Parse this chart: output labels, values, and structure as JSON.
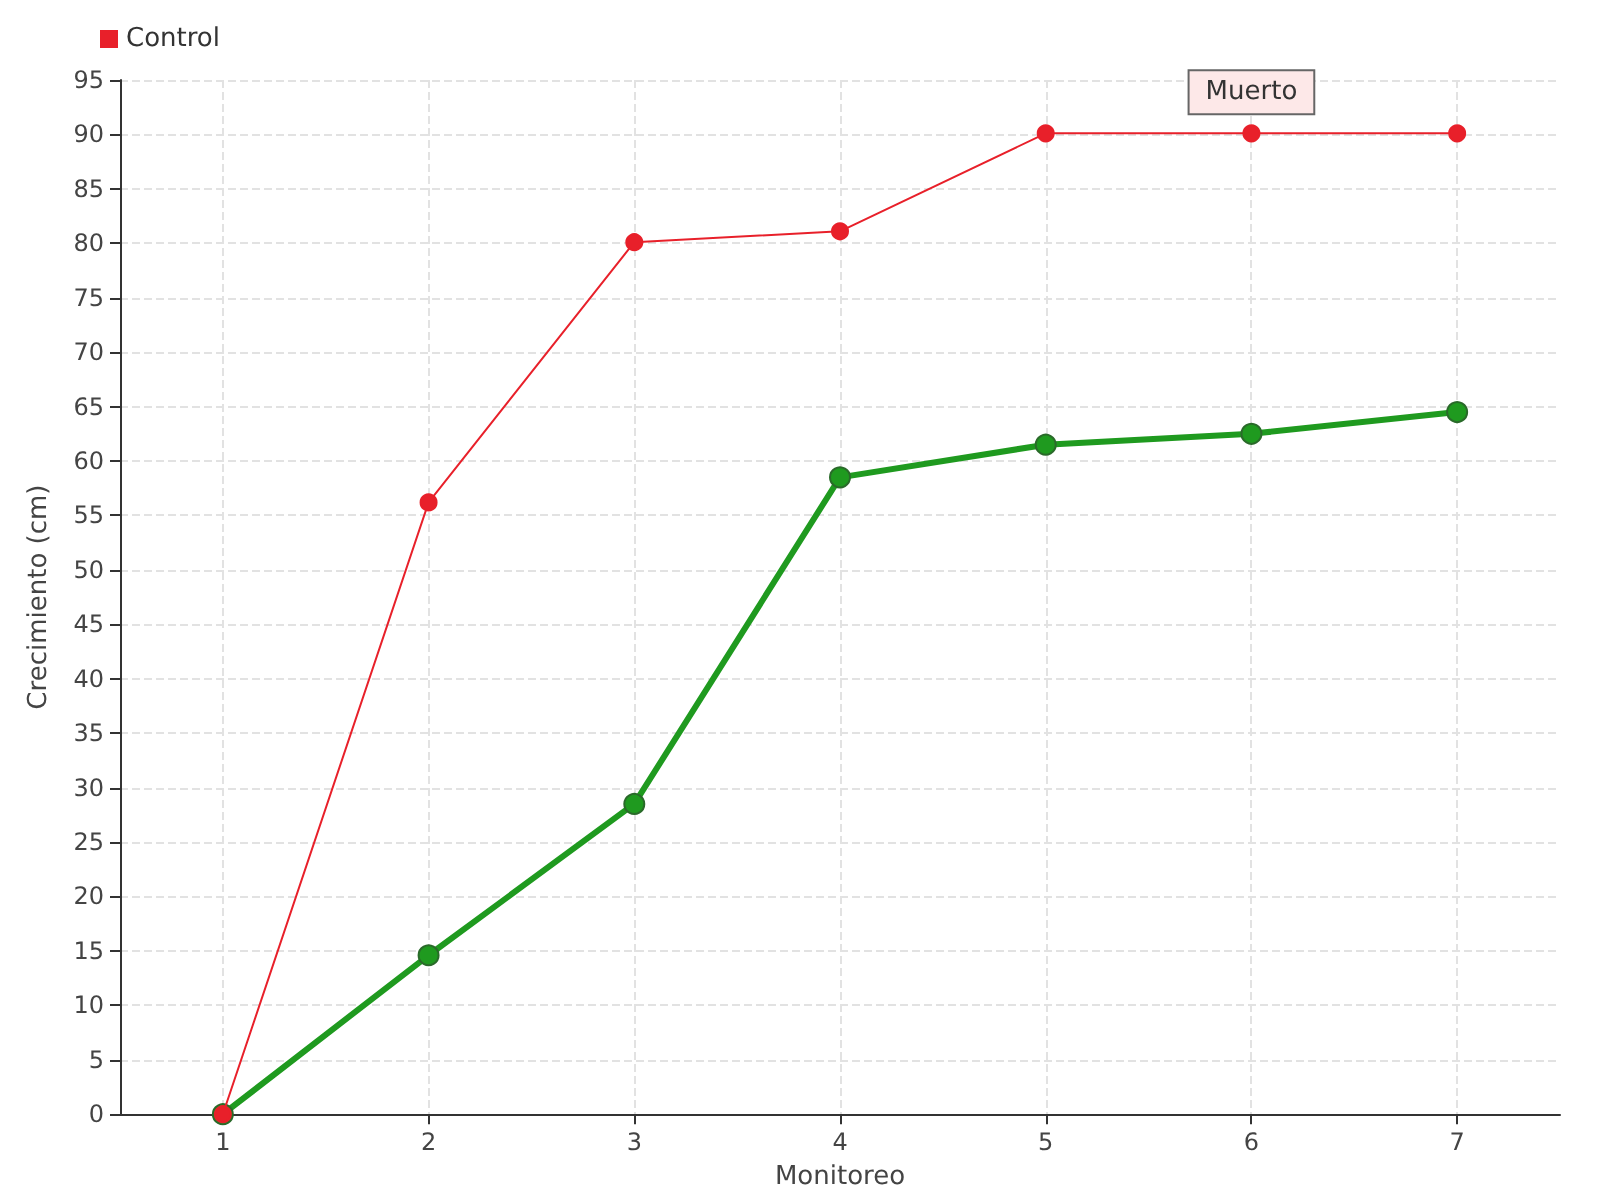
{
  "chart_data": {
    "type": "line",
    "xlabel": "Monitoreo",
    "ylabel": "Crecimiento (cm)",
    "x": [
      1,
      2,
      3,
      4,
      5,
      6,
      7
    ],
    "xlim": [
      0.5,
      7.5
    ],
    "xticks": [
      1,
      2,
      3,
      4,
      5,
      6,
      7
    ],
    "ylim": [
      0,
      95
    ],
    "yticks": [
      0,
      5,
      10,
      15,
      20,
      25,
      30,
      35,
      40,
      45,
      50,
      55,
      60,
      65,
      70,
      75,
      80,
      85,
      90,
      95
    ],
    "series": [
      {
        "color": "#1f9a1f",
        "values": [
          0,
          14.6,
          28.5,
          58.5,
          61.5,
          62.5,
          64.5
        ]
      },
      {
        "name": "Control",
        "color": "#e8202a",
        "values": [
          0,
          56.2,
          80.1,
          81.1,
          90.1,
          90.1,
          90.1
        ]
      }
    ],
    "annotations": [
      {
        "text": "Muerto",
        "x": 6,
        "y": 90.1
      }
    ],
    "grid": true,
    "legend": "top left",
    "marker": "circle",
    "line_style": "solid"
  }
}
